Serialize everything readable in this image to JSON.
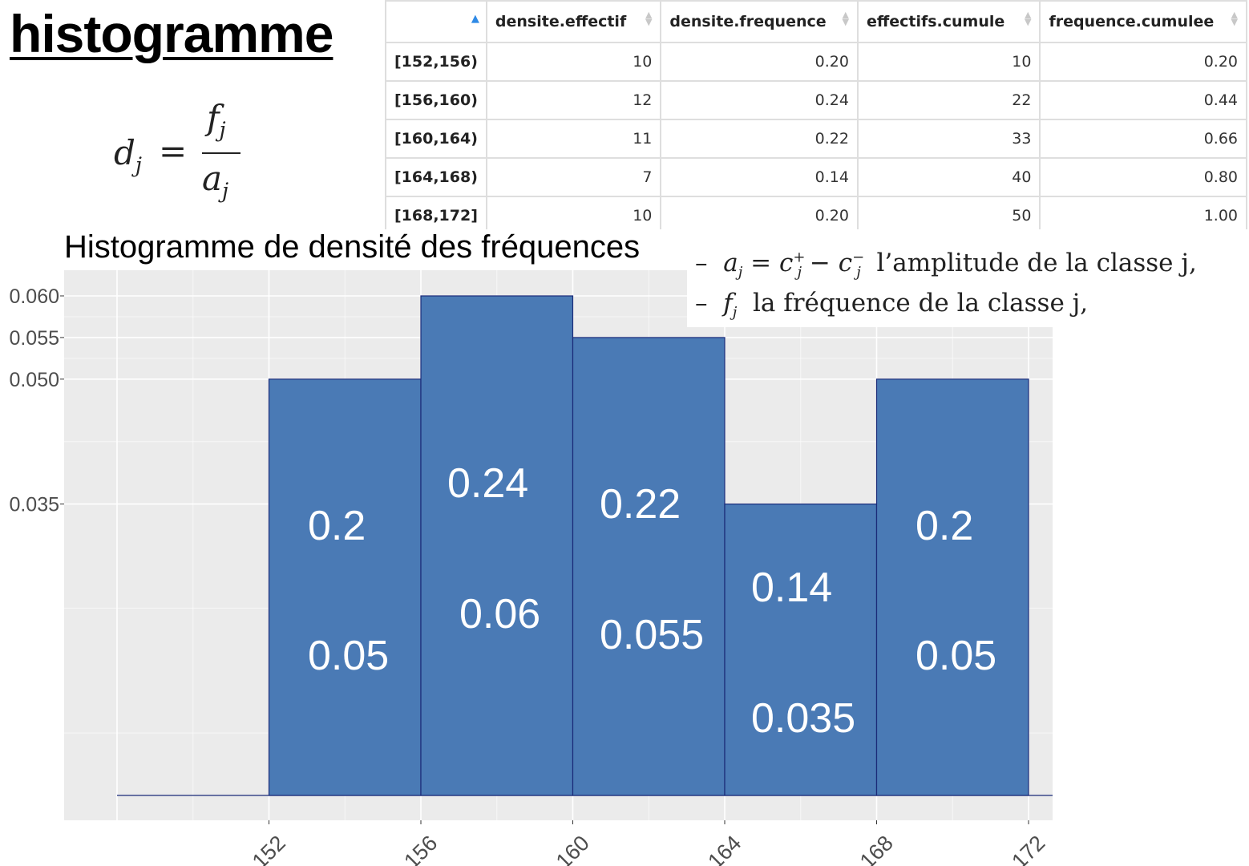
{
  "header": {
    "title": "histogramme"
  },
  "formula": {
    "lhs": "d",
    "lhs_sub": "j",
    "eq": "=",
    "num": "f",
    "num_sub": "j",
    "den": "a",
    "den_sub": "j"
  },
  "table": {
    "columns": [
      "",
      "densite.effectif",
      "densite.frequence",
      "effectifs.cumule",
      "frequence.cumulee"
    ],
    "rows": [
      [
        "[152,156)",
        "10",
        "0.20",
        "10",
        "0.20"
      ],
      [
        "[156,160)",
        "12",
        "0.24",
        "22",
        "0.44"
      ],
      [
        "[160,164)",
        "11",
        "0.22",
        "33",
        "0.66"
      ],
      [
        "[164,168)",
        "7",
        "0.14",
        "40",
        "0.80"
      ],
      [
        "[168,172]",
        "10",
        "0.20",
        "50",
        "1.00"
      ]
    ]
  },
  "definitions": [
    {
      "dash": "–",
      "expr": "a_j = c_j^+ − c_j^−",
      "text": "l’amplitude de la classe j,"
    },
    {
      "dash": "–",
      "expr": "f_j",
      "text": "la fréquence de la classe j,"
    }
  ],
  "colors": {
    "bar_fill": "#4a7ab5",
    "bar_stroke": "#1a2a78",
    "panel_bg": "#ebebeb",
    "grid": "#ffffff"
  },
  "chart_data": {
    "type": "bar",
    "title": "Histogramme de densité des fréquences",
    "xlabel": "",
    "ylabel": "",
    "x_ticks": [
      "152",
      "156",
      "160",
      "164",
      "168",
      "172"
    ],
    "y_ticks": [
      "0.035",
      "0.050",
      "0.055",
      "0.060"
    ],
    "bins": [
      {
        "from": 148,
        "to": 152,
        "density": 0
      },
      {
        "from": 152,
        "to": 156,
        "density": 0.05,
        "label_top": "0.2",
        "label_bottom": "0.05"
      },
      {
        "from": 156,
        "to": 160,
        "density": 0.06,
        "label_top": "0.24",
        "label_bottom": "0.06"
      },
      {
        "from": 160,
        "to": 164,
        "density": 0.055,
        "label_top": "0.22",
        "label_bottom": "0.055"
      },
      {
        "from": 164,
        "to": 168,
        "density": 0.035,
        "label_top": "0.14",
        "label_bottom": "0.035"
      },
      {
        "from": 168,
        "to": 172,
        "density": 0.05,
        "label_top": "0.2",
        "label_bottom": "0.05"
      }
    ],
    "ylim": [
      0,
      0.06
    ],
    "grid": true,
    "legend": "none"
  }
}
